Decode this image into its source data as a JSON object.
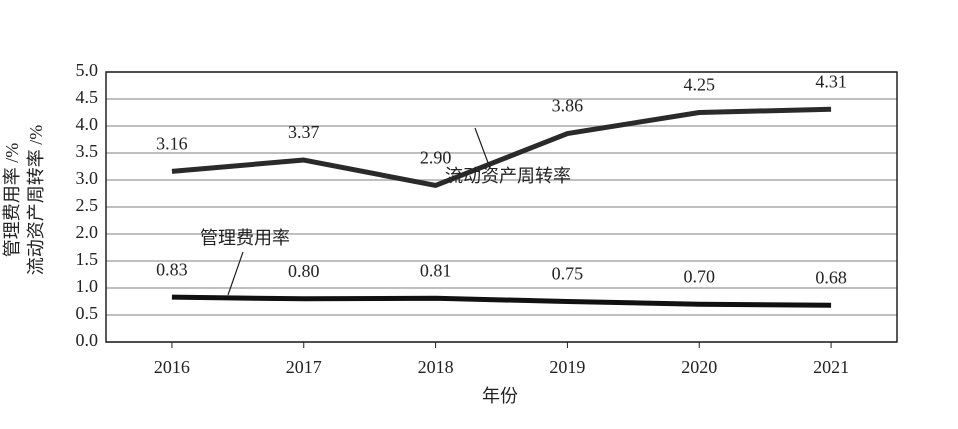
{
  "chart_data": {
    "type": "line",
    "x_label": "年份",
    "y_label": [
      "管理费用率 /%",
      "流动资产周转率 /%"
    ],
    "categories": [
      "2016",
      "2017",
      "2018",
      "2019",
      "2020",
      "2021"
    ],
    "series": [
      {
        "name": "流动资产周转率",
        "color": "#2a2a2a",
        "values": [
          3.16,
          3.37,
          2.9,
          3.86,
          4.25,
          4.31
        ],
        "value_labels": [
          "3.16",
          "3.37",
          "2.90",
          "3.86",
          "4.25",
          "4.31"
        ]
      },
      {
        "name": "管理费用率",
        "color": "#111111",
        "values": [
          0.83,
          0.8,
          0.81,
          0.75,
          0.7,
          0.68
        ],
        "value_labels": [
          "0.83",
          "0.80",
          "0.81",
          "0.75",
          "0.70",
          "0.68"
        ]
      }
    ],
    "ylim": [
      0,
      5
    ],
    "yticks": [
      {
        "value": 0,
        "label": "0.0"
      },
      0.5,
      {
        "value": 1,
        "label": "1.0"
      },
      1.5,
      {
        "value": 2,
        "label": "2.0"
      },
      2.5,
      {
        "value": 3,
        "label": "3.0"
      },
      3.5,
      {
        "value": 4,
        "label": "4.0"
      },
      4.5,
      {
        "value": 5,
        "label": "5.0"
      }
    ],
    "grid": true
  }
}
